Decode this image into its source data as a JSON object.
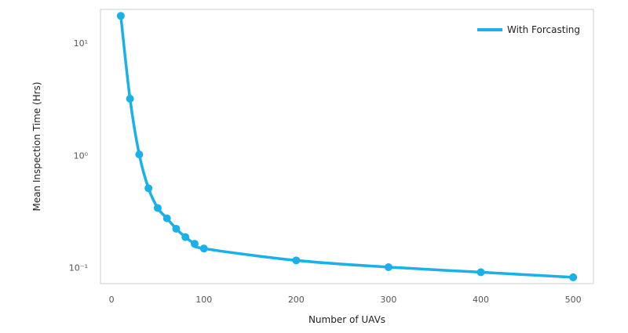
{
  "chart_data": {
    "type": "line",
    "title": "",
    "xlabel": "Number of UAVs",
    "ylabel": "Mean Inspection Time (Hrs)",
    "xlim": [
      -12,
      522
    ],
    "ylim": [
      0.072,
      20
    ],
    "y_scale": "log",
    "grid": false,
    "legend_position": "top-right",
    "x_ticks": [
      0,
      100,
      200,
      300,
      400,
      500
    ],
    "x_tick_labels": [
      "0",
      "100",
      "200",
      "300",
      "400",
      "500"
    ],
    "y_ticks": [
      0.1,
      1,
      10
    ],
    "y_tick_labels": [
      "10⁻¹",
      "10⁰",
      "10¹"
    ],
    "series": [
      {
        "name": "With Forcasting",
        "color": "#1ab0e8",
        "x": [
          10,
          20,
          30,
          40,
          50,
          60,
          70,
          80,
          90,
          100,
          200,
          300,
          400,
          500
        ],
        "y": [
          17.5,
          3.2,
          1.02,
          0.51,
          0.34,
          0.275,
          0.222,
          0.187,
          0.163,
          0.148,
          0.116,
          0.101,
          0.091,
          0.082
        ]
      }
    ]
  }
}
